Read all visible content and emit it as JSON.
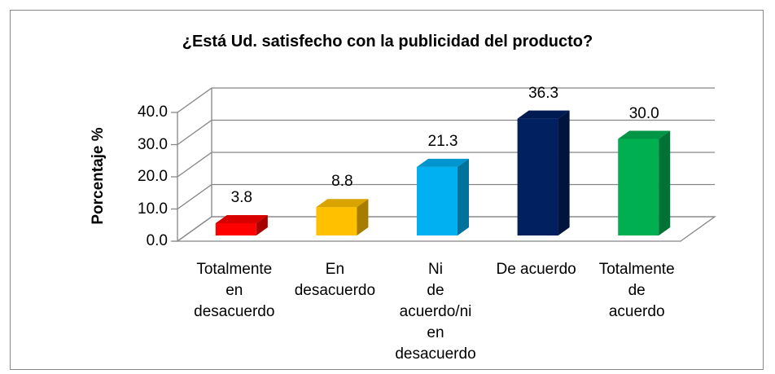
{
  "chart_data": {
    "type": "bar3d",
    "title": "¿Está Ud. satisfecho con la publicidad del producto?",
    "y_label": "Porcentaje %",
    "categories": [
      "Totalmente en desacuerdo",
      "En desacuerdo",
      "Ni de acuerdo/ni en desacuerdo",
      "De acuerdo",
      "Totalmente de acuerdo"
    ],
    "values": [
      3.8,
      8.8,
      21.3,
      36.3,
      30.0
    ],
    "value_labels": [
      "3.8",
      "8.8",
      "21.3",
      "36.3",
      "30.0"
    ],
    "colors": [
      "#ff0000",
      "#ffc000",
      "#00b0f0",
      "#002060",
      "#00b050"
    ],
    "ylim": [
      0,
      40
    ],
    "yticks": [
      {
        "value": 0,
        "label": "0.0"
      },
      {
        "value": 10,
        "label": "10.0"
      },
      {
        "value": 20,
        "label": "20.0"
      },
      {
        "value": 30,
        "label": "30.0"
      },
      {
        "value": 40,
        "label": "40.0"
      }
    ],
    "grid": true
  }
}
